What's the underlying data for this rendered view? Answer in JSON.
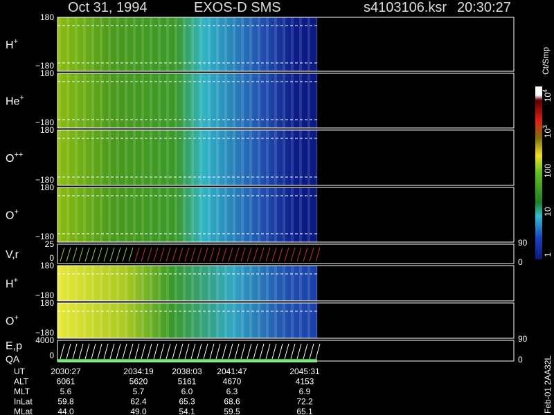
{
  "header": {
    "date": "Oct 31, 1994",
    "instrument": "EXOS-D SMS",
    "file": "s4103106.ksr",
    "time": "20:30:27"
  },
  "panels": [
    {
      "label": "H",
      "sup": "+",
      "ticks": [
        "180",
        "−180"
      ]
    },
    {
      "label": "He",
      "sup": "+",
      "ticks": [
        "180",
        "−180"
      ]
    },
    {
      "label": "O",
      "sup": "++",
      "ticks": [
        "180",
        "−180"
      ]
    },
    {
      "label": "O",
      "sup": "+",
      "ticks": [
        "180",
        "−180"
      ]
    },
    {
      "label": "V,r",
      "ticks": [
        "25",
        "0"
      ],
      "right_ticks": [
        "90",
        "0"
      ]
    },
    {
      "label": "H",
      "sup": "+",
      "ticks": [
        "180",
        "−180"
      ]
    },
    {
      "label": "O",
      "sup": "+",
      "ticks": [
        "180",
        "−180"
      ]
    },
    {
      "label": "E,p",
      "label2": "QA",
      "ticks": [
        "4000",
        "0"
      ],
      "right_ticks": [
        "90",
        "0"
      ]
    }
  ],
  "ephemeris": {
    "rows": [
      [
        "UT",
        "2030:27",
        "2034:19",
        "2038:03",
        "2041:47",
        "2045:31"
      ],
      [
        "ALT",
        "6061",
        "5620",
        "5161",
        "4670",
        "4153"
      ],
      [
        "MLT",
        "5.6",
        "5.7",
        "6.0",
        "6.3",
        "6.9"
      ],
      [
        "InLat",
        "59.8",
        "62.4",
        "65.3",
        "68.6",
        "72.2"
      ],
      [
        "MLat",
        "44.0",
        "49.0",
        "54.1",
        "59.5",
        "65.1"
      ]
    ]
  },
  "colorbar": {
    "unit": "Ct/Smp",
    "ticks": [
      {
        "base": "10",
        "sup": "4"
      },
      {
        "base": "10",
        "sup": "3"
      },
      {
        "base": "100"
      },
      {
        "base": "10"
      },
      {
        "base": "1"
      }
    ]
  },
  "footer": {
    "code": "Feb-01 2AA32L"
  }
}
